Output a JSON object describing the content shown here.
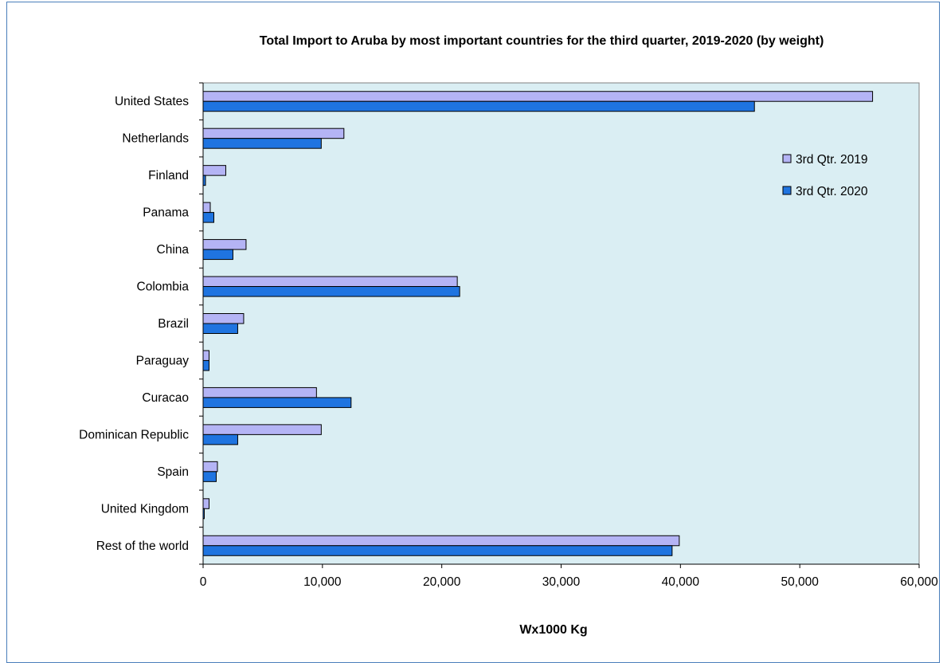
{
  "chart_data": {
    "type": "bar",
    "orientation": "horizontal",
    "title": "Total Import to Aruba  by most important countries  for the third quarter,  2019-2020 (by weight)",
    "xlabel": "Wx1000 Kg",
    "ylabel": "",
    "xlim": [
      0,
      60000
    ],
    "xticks": [
      0,
      10000,
      20000,
      30000,
      40000,
      50000,
      60000
    ],
    "xtick_labels": [
      "0",
      "10,000",
      "20,000",
      "30,000",
      "40,000",
      "50,000",
      "60,000"
    ],
    "categories": [
      "United States",
      "Netherlands",
      "Finland",
      "Panama",
      "China",
      "Colombia",
      "Brazil",
      "Paraguay",
      "Curacao",
      "Dominican Republic",
      "Spain",
      "United Kingdom",
      "Rest of the world"
    ],
    "series": [
      {
        "name": "3rd Qtr. 2019",
        "color": "#b4b4f5",
        "values": [
          56100,
          11800,
          1900,
          600,
          3600,
          21300,
          3400,
          500,
          9500,
          9900,
          1200,
          500,
          39900
        ]
      },
      {
        "name": "3rd Qtr. 2020",
        "color": "#1f74e0",
        "values": [
          46200,
          9900,
          200,
          900,
          2500,
          21500,
          2900,
          500,
          12400,
          2900,
          1100,
          100,
          39300
        ]
      }
    ],
    "legend_position": "right",
    "plot_background": "#daeef3",
    "grid": false
  }
}
